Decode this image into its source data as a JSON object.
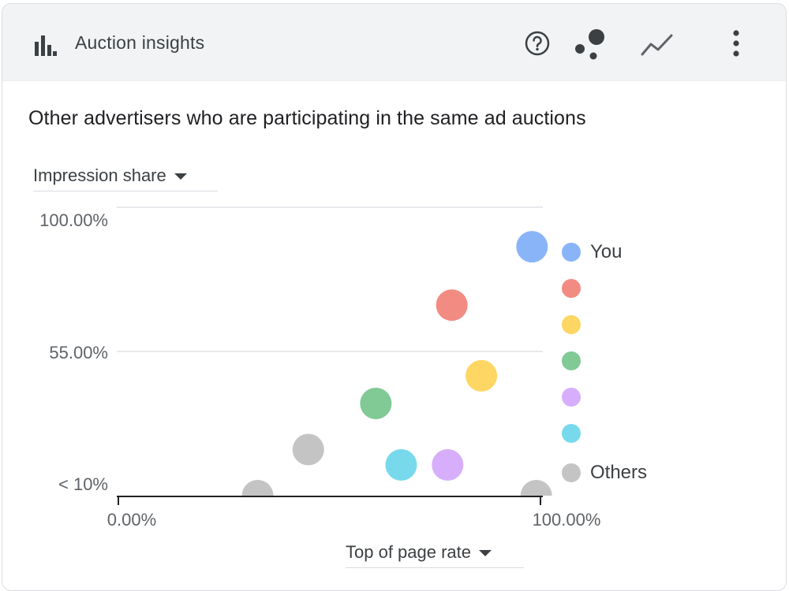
{
  "header": {
    "title": "Auction insights",
    "icons": [
      "bar-chart-icon",
      "help-icon",
      "scatter-chart-icon",
      "line-chart-icon",
      "more-vert-icon"
    ]
  },
  "main": {
    "subtitle": "Other advertisers who are participating in the same ad auctions",
    "y_metric": "Impression share",
    "x_metric": "Top of page rate"
  },
  "chart_data": {
    "type": "scatter",
    "xlabel": "Top of page rate",
    "ylabel": "Impression share",
    "x_ticks": [
      "0.00%",
      "100.00%"
    ],
    "y_ticks": [
      "< 10%",
      "55.00%",
      "100.00%"
    ],
    "xlim": [
      0,
      100
    ],
    "ylim": [
      10,
      100
    ],
    "grid": true,
    "legend": "right",
    "series": [
      {
        "name": "You",
        "color": "#8ab4f8",
        "points": [
          {
            "x": 98,
            "y": 91
          }
        ]
      },
      {
        "name": "",
        "color": "#f28b82",
        "points": [
          {
            "x": 79,
            "y": 72
          }
        ]
      },
      {
        "name": "",
        "color": "#fdd663",
        "points": [
          {
            "x": 86,
            "y": 49
          }
        ]
      },
      {
        "name": "",
        "color": "#81c995",
        "points": [
          {
            "x": 61,
            "y": 40
          }
        ]
      },
      {
        "name": "",
        "color": "#d7aefb",
        "points": [
          {
            "x": 78,
            "y": 20
          }
        ]
      },
      {
        "name": "",
        "color": "#78d9ec",
        "points": [
          {
            "x": 67,
            "y": 20
          }
        ]
      },
      {
        "name": "Others",
        "color": "#c4c4c4",
        "points": [
          {
            "x": 45,
            "y": 25
          },
          {
            "x": 33,
            "y": 10
          },
          {
            "x": 99,
            "y": 10
          }
        ]
      }
    ]
  }
}
